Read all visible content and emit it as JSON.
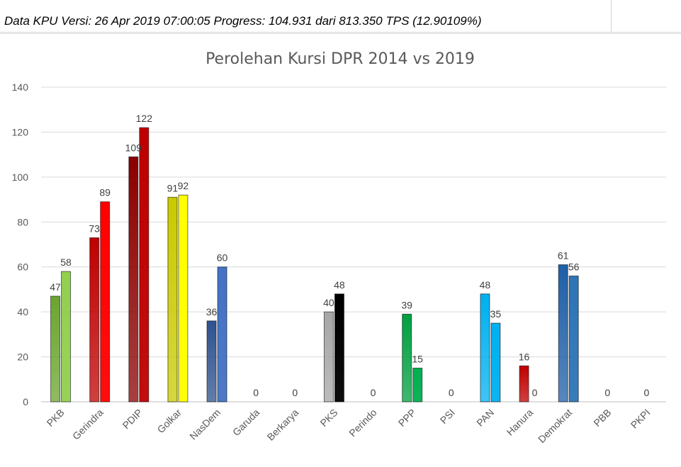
{
  "header": {
    "text": "Data KPU Versi: 26 Apr 2019 07:00:05 Progress: 104.931 dari 813.350 TPS (12.90109%)"
  },
  "chart_data": {
    "type": "bar",
    "title": "Perolehan Kursi DPR 2014 vs 2019",
    "xlabel": "",
    "ylabel": "",
    "ylim": [
      0,
      140
    ],
    "yticks": [
      0,
      20,
      40,
      60,
      80,
      100,
      120,
      140
    ],
    "grid": true,
    "legend": "none",
    "categories": [
      "PKB",
      "Gerindra",
      "PDIP",
      "Golkar",
      "NasDem",
      "Garuda",
      "Berkarya",
      "PKS",
      "Perindo",
      "PPP",
      "PSI",
      "PAN",
      "Hanura",
      "Demokrat",
      "PBB",
      "PKPI"
    ],
    "series": [
      {
        "values": [
          47,
          73,
          109,
          91,
          36,
          null,
          null,
          40,
          null,
          39,
          null,
          48,
          16,
          61,
          null,
          null
        ]
      },
      {
        "values": [
          58,
          89,
          122,
          92,
          60,
          0,
          0,
          48,
          0,
          15,
          0,
          35,
          0,
          56,
          0,
          0
        ]
      }
    ],
    "colors": {
      "PKB": [
        "#6aa52e",
        "#92d050"
      ],
      "Gerindra": [
        "#c00000",
        "#ff0000"
      ],
      "PDIP": [
        "#8b0000",
        "#c00000"
      ],
      "Golkar": [
        "#c9c900",
        "#ffff00"
      ],
      "NasDem": [
        "#2f528f",
        "#4472c4"
      ],
      "Garuda": [
        "#999999",
        "#999999"
      ],
      "Berkarya": [
        "#999999",
        "#999999"
      ],
      "PKS": [
        "#a6a6a6",
        "#000000"
      ],
      "Perindo": [
        "#999999",
        "#999999"
      ],
      "PPP": [
        "#00a040",
        "#00b050"
      ],
      "PSI": [
        "#999999",
        "#999999"
      ],
      "PAN": [
        "#00b0f0",
        "#00b0f0"
      ],
      "Hanura": [
        "#c00000",
        "#c00000"
      ],
      "Demokrat": [
        "#1f5fa8",
        "#2e75b6"
      ],
      "PBB": [
        "#999999",
        "#999999"
      ],
      "PKPI": [
        "#999999",
        "#999999"
      ]
    }
  }
}
